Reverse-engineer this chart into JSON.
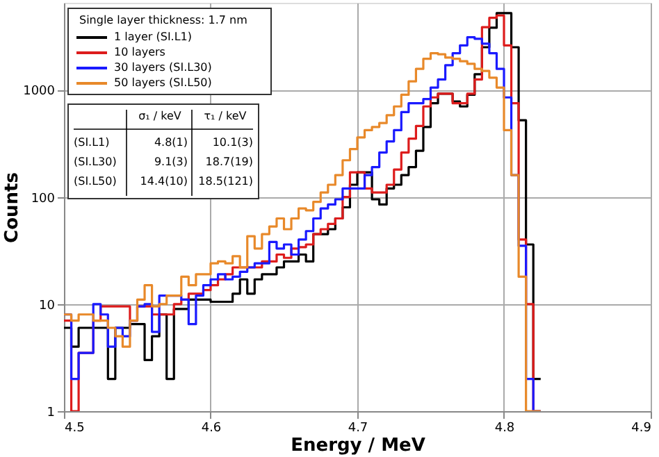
{
  "chart_data": {
    "type": "histogram",
    "xlabel": "Energy / MeV",
    "ylabel": "Counts",
    "legend_title": "Single layer thickness: 1.7 nm",
    "legend": "top left",
    "grid": true,
    "log": "y",
    "xlim": [
      4.5,
      4.9
    ],
    "xticks": [
      4.5,
      4.6,
      4.7,
      4.8,
      4.9
    ],
    "ylim": [
      1,
      6500
    ],
    "yticks": [
      1,
      10,
      100,
      1000
    ],
    "bins": [
      4.5,
      4.505,
      4.51,
      4.515,
      4.52,
      4.525,
      4.53,
      4.535,
      4.54,
      4.545,
      4.55,
      4.555,
      4.56,
      4.565,
      4.57,
      4.575,
      4.58,
      4.585,
      4.59,
      4.595,
      4.6,
      4.605,
      4.61,
      4.615,
      4.62,
      4.625,
      4.63,
      4.635,
      4.64,
      4.645,
      4.65,
      4.655,
      4.66,
      4.665,
      4.67,
      4.675,
      4.68,
      4.685,
      4.69,
      4.695,
      4.7,
      4.705,
      4.71,
      4.715,
      4.72,
      4.725,
      4.73,
      4.735,
      4.74,
      4.745,
      4.75,
      4.755,
      4.76,
      4.765,
      4.77,
      4.775,
      4.78,
      4.785,
      4.79,
      4.795,
      4.8,
      4.805,
      4.81,
      4.815,
      4.82,
      4.825
    ],
    "series": [
      {
        "name": "1 layer (SI.L1)",
        "color": "#000000",
        "values": [
          6,
          4,
          6,
          6,
          6,
          6,
          2,
          6,
          6,
          6.5,
          6.5,
          3,
          5,
          8,
          2,
          9,
          9,
          11,
          11,
          11,
          10.5,
          10.5,
          10.5,
          12.5,
          17,
          12.5,
          17,
          19,
          19,
          22,
          25,
          25,
          29,
          25,
          45,
          45,
          50,
          63,
          80,
          130,
          170,
          170,
          95,
          85,
          120,
          130,
          160,
          190,
          270,
          450,
          750,
          920,
          920,
          780,
          700,
          900,
          1400,
          2500,
          3800,
          5200,
          5200,
          2500,
          520,
          36,
          2
        ]
      },
      {
        "name": "10 layers",
        "color": "#dd1c1c",
        "values": [
          7,
          1,
          3.5,
          3.5,
          7,
          9.5,
          9.5,
          9.5,
          9.5,
          7,
          9.5,
          9.5,
          8,
          8,
          8,
          10,
          11,
          12.5,
          12.5,
          13.5,
          15,
          17,
          19,
          22,
          22,
          22,
          22,
          25,
          25,
          29,
          27,
          33,
          34,
          36,
          45,
          50,
          56,
          63,
          100,
          170,
          170,
          120,
          110,
          110,
          130,
          180,
          260,
          350,
          460,
          700,
          850,
          920,
          920,
          750,
          750,
          920,
          1250,
          3850,
          4700,
          4950,
          2600,
          750,
          40,
          10,
          1
        ]
      },
      {
        "name": "30 layers (SI.L30)",
        "color": "#1a1aff",
        "values": [
          8,
          2,
          3.5,
          3.5,
          10,
          8,
          4,
          6,
          5,
          7,
          9.5,
          10,
          5.5,
          12,
          12,
          12,
          11,
          6.5,
          12,
          15,
          17,
          19,
          17,
          18,
          20,
          22,
          24,
          24,
          38,
          33,
          36,
          29,
          40,
          48,
          63,
          78,
          85,
          95,
          120,
          120,
          120,
          160,
          190,
          260,
          330,
          420,
          620,
          750,
          750,
          820,
          1050,
          1250,
          1700,
          2200,
          2600,
          3100,
          3000,
          2700,
          2200,
          1570,
          850,
          160,
          35,
          2,
          1
        ]
      },
      {
        "name": "50 layers (SI.L50)",
        "color": "#e8892a",
        "values": [
          8,
          7,
          8,
          8,
          7,
          7,
          6,
          5,
          4,
          7,
          11,
          15,
          9.5,
          10,
          12,
          12,
          18,
          15,
          19,
          19,
          24,
          25,
          24,
          28,
          22,
          43,
          33,
          45,
          53,
          63,
          50,
          63,
          78,
          75,
          90,
          110,
          130,
          160,
          220,
          280,
          360,
          420,
          450,
          490,
          580,
          700,
          900,
          1200,
          1570,
          1950,
          2200,
          2150,
          2000,
          1950,
          1850,
          1750,
          1570,
          1500,
          1300,
          1050,
          420,
          160,
          18,
          1,
          1
        ]
      }
    ],
    "annotations": [
      "σ₁ / keV",
      "τ₁ / keV",
      "(SI.L1)",
      "4.8(1)",
      "10.1(3)",
      "(SI.L30)",
      "9.1(3)",
      "18.7(19)",
      "(SI.L50)",
      "14.4(10)",
      "18.5(121)"
    ]
  }
}
